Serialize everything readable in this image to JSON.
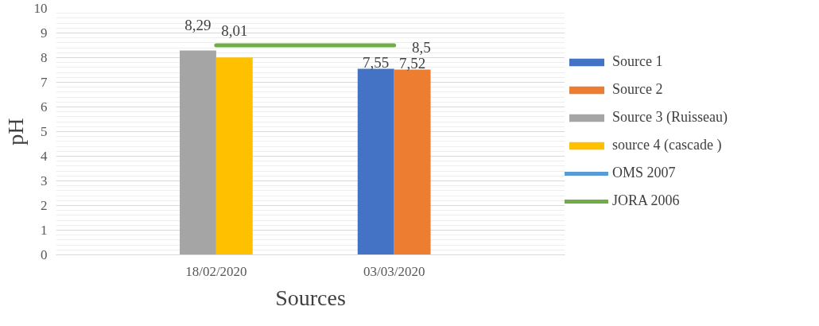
{
  "chart_data": {
    "type": "bar",
    "xlabel": "Sources",
    "ylabel": "pH",
    "categories": [
      "18/02/2020",
      "03/03/2020"
    ],
    "series": [
      {
        "name": "Source 1",
        "color": "#4472c4",
        "values": [
          null,
          7.55
        ],
        "value_labels": [
          null,
          "7,55"
        ]
      },
      {
        "name": "Source 2",
        "color": "#ed7d31",
        "values": [
          null,
          7.52
        ],
        "value_labels": [
          null,
          "7,52"
        ]
      },
      {
        "name": "Source 3 (Ruisseau)",
        "color": "#a5a5a5",
        "values": [
          8.29,
          null
        ],
        "value_labels": [
          "8,29",
          null
        ]
      },
      {
        "name": "source 4 (cascade )",
        "color": "#ffc000",
        "values": [
          8.01,
          null
        ],
        "value_labels": [
          "8,01",
          null
        ]
      },
      {
        "name": "OMS 2007",
        "type": "line",
        "color": "#5b9bd5",
        "values": [
          null,
          null
        ]
      },
      {
        "name": "JORA 2006",
        "type": "line",
        "color": "#70ad47",
        "values": [
          8.5,
          8.5
        ],
        "value_labels": [
          null,
          "8,5"
        ]
      }
    ],
    "ylim": [
      0,
      10
    ],
    "yticks": [
      0,
      1,
      2,
      3,
      4,
      5,
      6,
      7,
      8,
      9,
      10
    ],
    "grid": "y",
    "legend": "right"
  }
}
